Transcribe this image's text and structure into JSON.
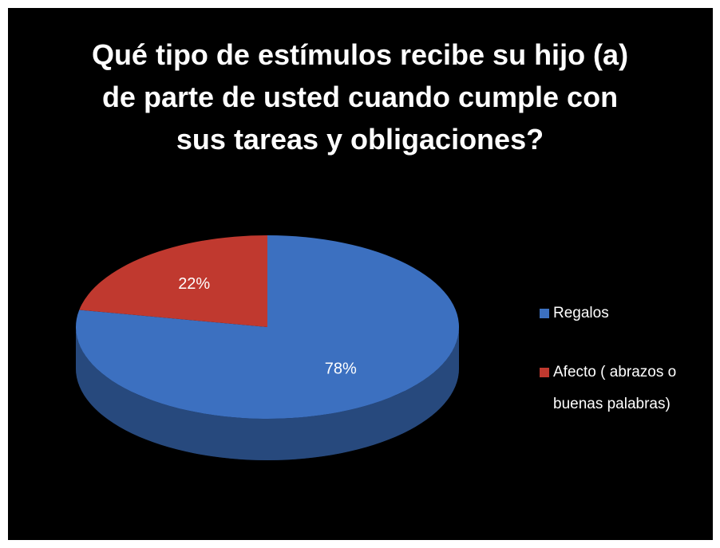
{
  "chart_data": {
    "type": "pie3d",
    "title": [
      "Qué tipo de estímulos recibe su hijo (a)",
      "de parte de usted cuando cumple con",
      "sus tareas y obligaciones?"
    ],
    "categories": [
      "Regalos",
      "Afecto ( abrazos o buenas palabras)"
    ],
    "values": [
      78,
      22
    ],
    "value_labels": [
      "78%",
      "22%"
    ],
    "colors": [
      "#3c70c0",
      "#c0392f"
    ],
    "legend": "right"
  }
}
